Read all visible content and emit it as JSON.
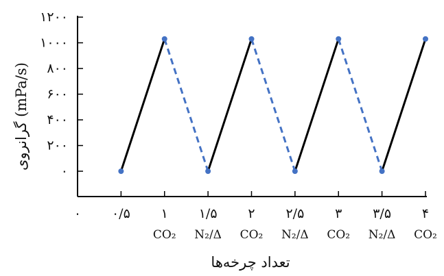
{
  "chart_data": {
    "type": "line",
    "xlabel": "تعداد چرخه‌ها",
    "ylabel": "گرانروی (mPa/s)",
    "xlim": [
      0,
      4
    ],
    "ylim": [
      0,
      1200
    ],
    "x_ticks": [
      {
        "value": 0,
        "label": "۰",
        "condition": ""
      },
      {
        "value": 0.5,
        "label": "۰/۵",
        "condition": ""
      },
      {
        "value": 1,
        "label": "۱",
        "condition": "CO₂"
      },
      {
        "value": 1.5,
        "label": "۱/۵",
        "condition": "N₂/Δ"
      },
      {
        "value": 2,
        "label": "۲",
        "condition": "CO₂"
      },
      {
        "value": 2.5,
        "label": "۲/۵",
        "condition": "N₂/Δ"
      },
      {
        "value": 3,
        "label": "۳",
        "condition": "CO₂"
      },
      {
        "value": 3.5,
        "label": "۳/۵",
        "condition": "N₂/Δ"
      },
      {
        "value": 4,
        "label": "۴",
        "condition": "CO₂"
      }
    ],
    "y_ticks": [
      {
        "value": 0,
        "label": "۰"
      },
      {
        "value": 200,
        "label": "۲۰۰"
      },
      {
        "value": 400,
        "label": "۴۰۰"
      },
      {
        "value": 600,
        "label": "۶۰۰"
      },
      {
        "value": 800,
        "label": "۸۰۰"
      },
      {
        "value": 1000,
        "label": "۱۰۰۰"
      },
      {
        "value": 1200,
        "label": "۱۲۰۰"
      }
    ],
    "points": [
      {
        "x": 0.5,
        "y": 0
      },
      {
        "x": 1,
        "y": 1030
      },
      {
        "x": 1.5,
        "y": 0
      },
      {
        "x": 2,
        "y": 1030
      },
      {
        "x": 2.5,
        "y": 0
      },
      {
        "x": 3,
        "y": 1030
      },
      {
        "x": 3.5,
        "y": 0
      },
      {
        "x": 4,
        "y": 1030
      }
    ],
    "series": [
      {
        "style": "solid",
        "color": "#000000",
        "segments": [
          [
            0.5,
            0,
            1,
            1030
          ],
          [
            1.5,
            0,
            2,
            1030
          ],
          [
            2.5,
            0,
            3,
            1030
          ],
          [
            3.5,
            0,
            4,
            1030
          ]
        ]
      },
      {
        "style": "dashed",
        "color": "#4472C4",
        "segments": [
          [
            1,
            1030,
            1.5,
            0
          ],
          [
            2,
            1030,
            2.5,
            0
          ],
          [
            3,
            1030,
            3.5,
            0
          ]
        ]
      }
    ],
    "marker_color": "#4472C4",
    "grid": false,
    "legend": "none"
  }
}
